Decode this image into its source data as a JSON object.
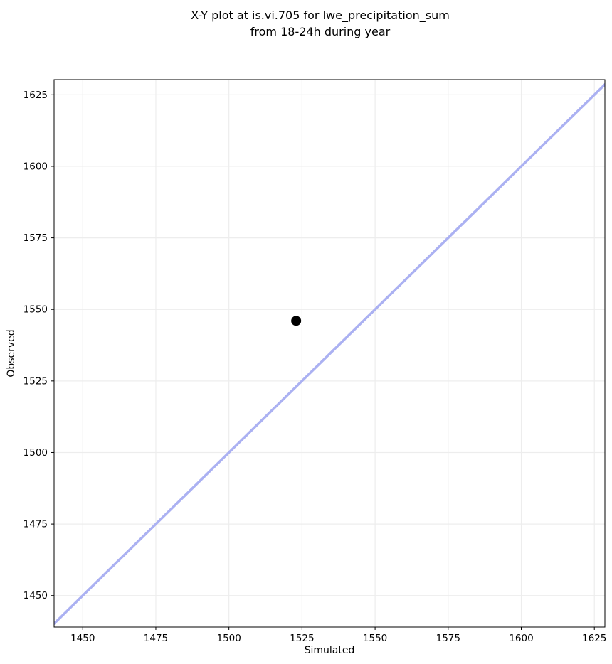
{
  "chart_data": {
    "type": "scatter",
    "title": "X-Y plot at is.vi.705 for lwe_precipitation_sum\nfrom 18-24h during year",
    "xlabel": "Simulated",
    "ylabel": "Observed",
    "xlim": [
      1440.2,
      1628.6
    ],
    "ylim": [
      1439.0,
      1630.3
    ],
    "xticks": [
      1450,
      1475,
      1500,
      1525,
      1550,
      1575,
      1600,
      1625
    ],
    "yticks": [
      1450,
      1475,
      1500,
      1525,
      1550,
      1575,
      1600,
      1625
    ],
    "grid": true,
    "legend": "none",
    "series": [
      {
        "name": "one-to-one-line",
        "type": "line",
        "x": [
          1439.0,
          1630.3
        ],
        "y": [
          1439.0,
          1630.3
        ],
        "color": "#abb1f2",
        "width": 3.5
      },
      {
        "name": "observed-vs-simulated-point",
        "type": "scatter",
        "x": [
          1523
        ],
        "y": [
          1546
        ],
        "color": "#000000",
        "marker": "circle",
        "marker_radius": 7
      }
    ],
    "colors": {
      "background": "#ffffff",
      "grid": "#ededed",
      "spine": "#000000",
      "text": "#000000"
    }
  }
}
